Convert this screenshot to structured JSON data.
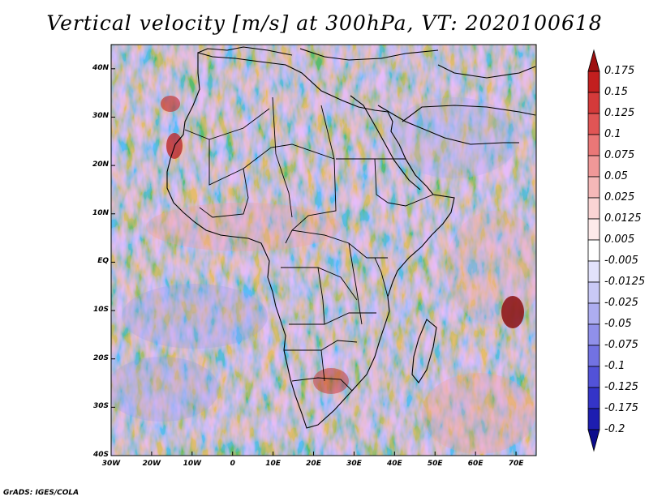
{
  "title": "Vertical velocity [m/s] at 300hPa, VT: 2020100618",
  "credit": "GrADS: IGES/COLA",
  "map": {
    "region": "Africa and surrounding oceans",
    "lon_range": [
      -30,
      75
    ],
    "lat_range": [
      -40,
      45
    ],
    "y_ticks": [
      {
        "label": "40N",
        "lat": 40
      },
      {
        "label": "30N",
        "lat": 30
      },
      {
        "label": "20N",
        "lat": 20
      },
      {
        "label": "10N",
        "lat": 10
      },
      {
        "label": "EQ",
        "lat": 0
      },
      {
        "label": "10S",
        "lat": -10
      },
      {
        "label": "20S",
        "lat": -20
      },
      {
        "label": "30S",
        "lat": -30
      },
      {
        "label": "40S",
        "lat": -40
      }
    ],
    "x_ticks": [
      {
        "label": "30W",
        "lon": -30
      },
      {
        "label": "20W",
        "lon": -20
      },
      {
        "label": "10W",
        "lon": -10
      },
      {
        "label": "0",
        "lon": 0
      },
      {
        "label": "10E",
        "lon": 10
      },
      {
        "label": "20E",
        "lon": 20
      },
      {
        "label": "30E",
        "lon": 30
      },
      {
        "label": "40E",
        "lon": 40
      },
      {
        "label": "50E",
        "lon": 50
      },
      {
        "label": "60E",
        "lon": 60
      },
      {
        "label": "70E",
        "lon": 70
      }
    ]
  },
  "colorbar": {
    "labels": [
      "0.175",
      "0.15",
      "0.125",
      "0.1",
      "0.075",
      "0.05",
      "0.025",
      "0.0125",
      "0.005",
      "-0.005",
      "-0.0125",
      "-0.025",
      "-0.05",
      "-0.075",
      "-0.1",
      "-0.125",
      "-0.175",
      "-0.2"
    ],
    "colors": [
      "#9e1010",
      "#c21f1f",
      "#d43a3a",
      "#e05555",
      "#ea7777",
      "#f09898",
      "#f5b8b8",
      "#fad4d4",
      "#fdeaea",
      "#ffffff",
      "#e2e2fb",
      "#c9c9f6",
      "#adadf1",
      "#9090ea",
      "#7272e2",
      "#5252d8",
      "#3434c8",
      "#1d1db0",
      "#0c0c8c"
    ]
  }
}
